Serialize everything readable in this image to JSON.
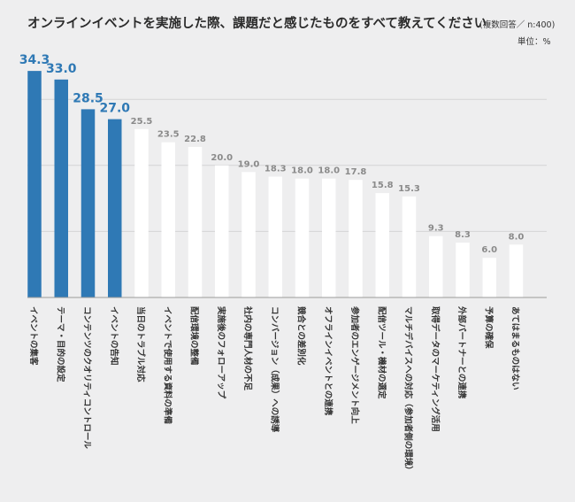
{
  "title": "オンラインイベントを実施した際、課題だと感じたものをすべて教えてください",
  "subtitle": "(複数回答／ n:400)",
  "unit_label": "単位：%",
  "colors": {
    "highlight": "#2f79b5",
    "bar": "#ffffff",
    "grid": "#d4d4d6",
    "axis": "#9a9a9a",
    "label_gray": "#8a8a8a",
    "background": "#eeeeef"
  },
  "chart_data": {
    "type": "bar",
    "title": "オンラインイベントを実施した際、課題だと感じたものをすべて教えてください",
    "subtitle": "(複数回答／ n:400)",
    "unit": "%",
    "ylim": [
      0,
      40
    ],
    "grid": true,
    "categories": [
      "イベントの集客",
      "テーマ・目的の設定",
      "コンテンツのクオリティコントロール",
      "イベントの告知",
      "当日のトラブル対応",
      "イベントで使用する資料の準備",
      "配信環境の整備",
      "実施後のフォローアップ",
      "社内の専門人材の不足",
      "コンバージョン（成果）への誘導",
      "競合との差別化",
      "オフラインイベントとの連携",
      "参加者のエンゲージメント向上",
      "配信ツール・機材の選定",
      "マルチデバイスへの対応（参加者側の環境）",
      "取得データのマーケティング活用",
      "外部パートナーとの連携",
      "予算の確保",
      "あてはまるものはない"
    ],
    "values": [
      34.3,
      33.0,
      28.5,
      27.0,
      25.5,
      23.5,
      22.8,
      20.0,
      19.0,
      18.3,
      18.0,
      18.0,
      17.8,
      15.8,
      15.3,
      9.3,
      8.3,
      6.0,
      8.0
    ],
    "value_labels": [
      "34.3",
      "33.0",
      "28.5",
      "27.0",
      "25.5",
      "23.5",
      "22.8",
      "20.0",
      "19.0",
      "18.3",
      "18.0",
      "18.0",
      "17.8",
      "15.8",
      "15.3",
      "9.3",
      "8.3",
      "6.0",
      "8.0"
    ],
    "highlighted_count": 4
  }
}
